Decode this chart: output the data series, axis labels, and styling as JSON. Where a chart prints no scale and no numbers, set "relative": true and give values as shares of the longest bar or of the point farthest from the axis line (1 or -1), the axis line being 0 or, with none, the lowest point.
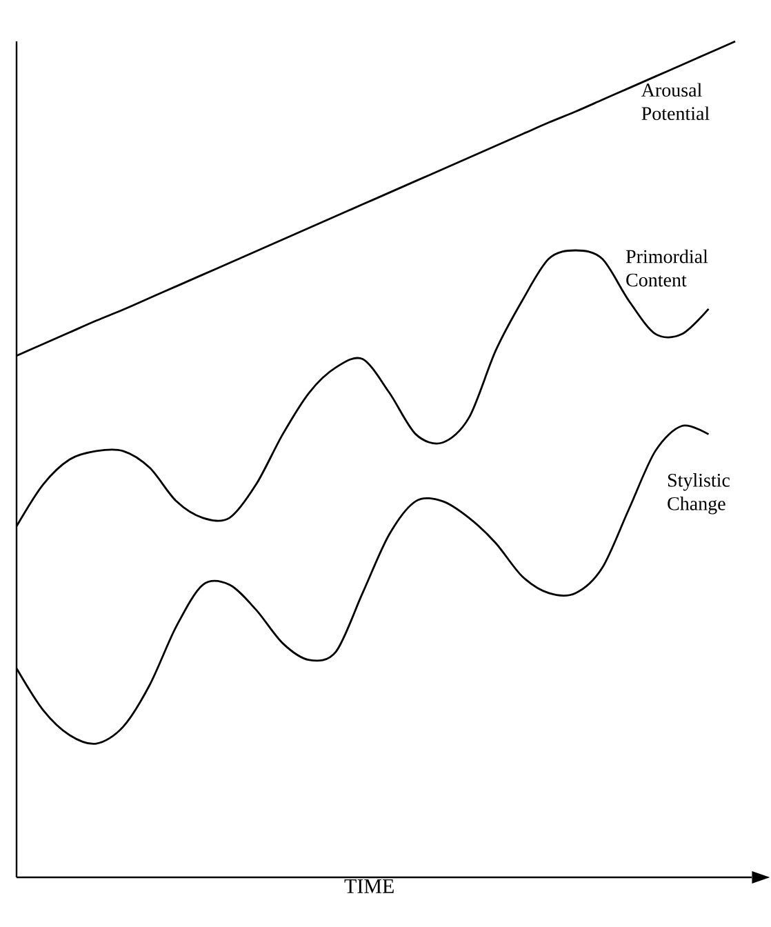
{
  "chart_data": {
    "type": "line",
    "relative": true,
    "xlabel": "TIME",
    "categories": [
      null,
      null,
      null,
      null,
      null,
      null,
      null,
      null,
      null,
      null,
      null,
      null,
      null,
      null,
      null,
      null,
      null,
      null,
      null,
      null,
      null,
      null,
      null,
      null,
      null,
      null,
      null,
      null
    ],
    "series": [
      {
        "name": "Arousal Potential",
        "color": "#000000",
        "values": [
          0.624,
          0.638,
          0.652,
          0.666,
          0.679,
          0.693,
          0.707,
          0.721,
          0.735,
          0.749,
          0.763,
          0.777,
          0.791,
          0.805,
          0.819,
          0.833,
          0.847,
          0.861,
          0.875,
          0.889,
          0.903,
          0.916,
          0.93,
          0.944,
          0.958,
          0.972,
          0.986,
          1.0
        ]
      },
      {
        "name": "Primordial Content",
        "color": "#000000",
        "values": [
          0.42,
          0.47,
          0.5,
          0.51,
          0.51,
          0.49,
          0.45,
          0.43,
          0.43,
          0.47,
          0.53,
          0.58,
          0.61,
          0.62,
          0.58,
          0.53,
          0.52,
          0.55,
          0.63,
          0.69,
          0.74,
          0.75,
          0.74,
          0.69,
          0.65,
          0.65,
          0.68,
          null
        ]
      },
      {
        "name": "Stylistic Change",
        "color": "#000000",
        "values": [
          0.25,
          0.2,
          0.17,
          0.16,
          0.18,
          0.23,
          0.3,
          0.35,
          0.35,
          0.32,
          0.28,
          0.26,
          0.27,
          0.34,
          0.41,
          0.45,
          0.45,
          0.43,
          0.4,
          0.36,
          0.34,
          0.34,
          0.37,
          0.44,
          0.51,
          0.54,
          0.53,
          null
        ]
      }
    ]
  }
}
